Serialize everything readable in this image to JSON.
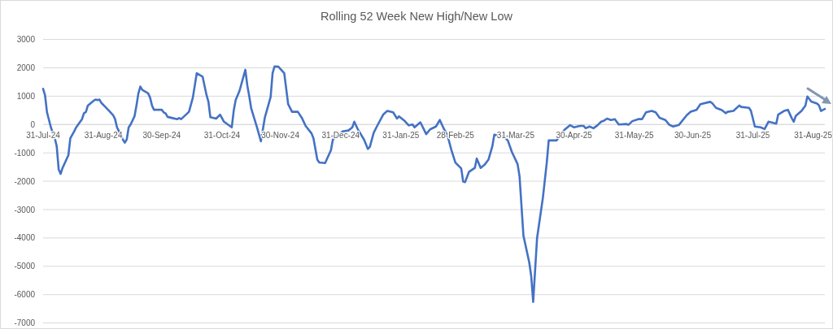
{
  "chart_data": {
    "type": "line",
    "title": "Rolling 52 Week New High/New Low",
    "x": [
      "2024-07-31",
      "2024-08-01",
      "2024-08-02",
      "2024-08-04",
      "2024-08-06",
      "2024-08-07",
      "2024-08-08",
      "2024-08-09",
      "2024-08-10",
      "2024-08-13",
      "2024-08-14",
      "2024-08-16",
      "2024-08-17",
      "2024-08-20",
      "2024-08-21",
      "2024-08-22",
      "2024-08-23",
      "2024-08-26",
      "2024-08-27",
      "2024-08-28",
      "2024-08-29",
      "2024-08-30",
      "2024-09-01",
      "2024-09-03",
      "2024-09-05",
      "2024-09-06",
      "2024-09-07",
      "2024-09-08",
      "2024-09-10",
      "2024-09-11",
      "2024-09-12",
      "2024-09-13",
      "2024-09-14",
      "2024-09-16",
      "2024-09-17",
      "2024-09-18",
      "2024-09-19",
      "2024-09-20",
      "2024-09-23",
      "2024-09-24",
      "2024-09-25",
      "2024-09-26",
      "2024-09-30",
      "2024-10-01",
      "2024-10-02",
      "2024-10-03",
      "2024-10-06",
      "2024-10-08",
      "2024-10-09",
      "2024-10-10",
      "2024-10-14",
      "2024-10-16",
      "2024-10-18",
      "2024-10-21",
      "2024-10-23",
      "2024-10-24",
      "2024-10-25",
      "2024-10-28",
      "2024-10-30",
      "2024-11-01",
      "2024-11-05",
      "2024-11-06",
      "2024-11-07",
      "2024-11-09",
      "2024-11-12",
      "2024-11-13",
      "2024-11-14",
      "2024-11-15",
      "2024-11-18",
      "2024-11-20",
      "2024-11-22",
      "2024-11-25",
      "2024-11-26",
      "2024-11-27",
      "2024-11-29",
      "2024-12-02",
      "2024-12-04",
      "2024-12-06",
      "2024-12-09",
      "2024-12-11",
      "2024-12-13",
      "2024-12-16",
      "2024-12-17",
      "2024-12-19",
      "2024-12-20",
      "2024-12-23",
      "2024-12-26",
      "2024-12-27",
      "2024-12-30",
      "2025-01-01",
      "2025-01-04",
      "2025-01-06",
      "2025-01-07",
      "2025-01-09",
      "2025-01-12",
      "2025-01-14",
      "2025-01-15",
      "2025-01-17",
      "2025-01-19",
      "2025-01-22",
      "2025-01-24",
      "2025-01-27",
      "2025-01-29",
      "2025-01-30",
      "2025-02-02",
      "2025-02-04",
      "2025-02-06",
      "2025-02-07",
      "2025-02-10",
      "2025-02-13",
      "2025-02-15",
      "2025-02-18",
      "2025-02-20",
      "2025-02-22",
      "2025-02-24",
      "2025-02-26",
      "2025-02-28",
      "2025-03-03",
      "2025-03-04",
      "2025-03-05",
      "2025-03-07",
      "2025-03-10",
      "2025-03-11",
      "2025-03-13",
      "2025-03-15",
      "2025-03-17",
      "2025-03-19",
      "2025-03-20",
      "2025-03-22",
      "2025-03-25",
      "2025-03-27",
      "2025-03-29",
      "2025-04-01",
      "2025-04-02",
      "2025-04-04",
      "2025-04-07",
      "2025-04-08",
      "2025-04-09",
      "2025-04-11",
      "2025-04-14",
      "2025-04-16",
      "2025-04-17",
      "2025-04-21",
      "2025-04-22",
      "2025-04-25",
      "2025-04-28",
      "2025-04-30",
      "2025-05-03",
      "2025-05-05",
      "2025-05-06",
      "2025-05-08",
      "2025-05-10",
      "2025-05-12",
      "2025-05-14",
      "2025-05-15",
      "2025-05-17",
      "2025-05-19",
      "2025-05-21",
      "2025-05-23",
      "2025-05-27",
      "2025-05-28",
      "2025-05-30",
      "2025-06-02",
      "2025-06-04",
      "2025-06-06",
      "2025-06-09",
      "2025-06-11",
      "2025-06-13",
      "2025-06-16",
      "2025-06-18",
      "2025-06-20",
      "2025-06-23",
      "2025-06-27",
      "2025-06-29",
      "2025-07-02",
      "2025-07-04",
      "2025-07-09",
      "2025-07-10",
      "2025-07-12",
      "2025-07-15",
      "2025-07-17",
      "2025-07-18",
      "2025-07-21",
      "2025-07-24",
      "2025-07-25",
      "2025-07-29",
      "2025-07-30",
      "2025-08-01",
      "2025-08-04",
      "2025-08-06",
      "2025-08-08",
      "2025-08-12",
      "2025-08-13",
      "2025-08-16",
      "2025-08-18",
      "2025-08-20",
      "2025-08-21",
      "2025-08-22",
      "2025-08-25",
      "2025-08-27",
      "2025-08-28",
      "2025-08-30",
      "2025-09-02",
      "2025-09-03",
      "2025-09-04",
      "2025-09-06"
    ],
    "series": [
      {
        "color": "#4472c4",
        "values": [
          1260,
          1030,
          430,
          -100,
          -480,
          -770,
          -1580,
          -1740,
          -1530,
          -1080,
          -480,
          -240,
          -100,
          190,
          400,
          440,
          670,
          840,
          880,
          860,
          880,
          760,
          620,
          480,
          330,
          190,
          -100,
          -240,
          -530,
          -640,
          -530,
          -100,
          0,
          290,
          670,
          1100,
          1340,
          1220,
          1100,
          950,
          670,
          520,
          520,
          430,
          390,
          270,
          220,
          190,
          230,
          190,
          450,
          950,
          1810,
          1690,
          1050,
          810,
          260,
          210,
          350,
          100,
          -100,
          480,
          860,
          1190,
          1930,
          1380,
          1000,
          570,
          -100,
          -590,
          240,
          970,
          1810,
          2050,
          2040,
          1810,
          720,
          450,
          450,
          240,
          -50,
          -310,
          -480,
          -1240,
          -1340,
          -1360,
          -910,
          -530,
          -380,
          -240,
          -210,
          -100,
          100,
          -190,
          -530,
          -860,
          -790,
          -290,
          -20,
          360,
          480,
          430,
          210,
          290,
          120,
          -30,
          0,
          -100,
          80,
          -340,
          -170,
          -70,
          160,
          -140,
          -400,
          -910,
          -1340,
          -1550,
          -2010,
          -2030,
          -1670,
          -1530,
          -1200,
          -1530,
          -1420,
          -1240,
          -770,
          -360,
          -400,
          -430,
          -570,
          -960,
          -1400,
          -1830,
          -3920,
          -4870,
          -5350,
          -6260,
          -4010,
          -2580,
          -1340,
          -560,
          -560,
          -480,
          -190,
          -20,
          -100,
          -50,
          -50,
          -130,
          -70,
          -130,
          -30,
          100,
          120,
          210,
          160,
          190,
          0,
          20,
          -10,
          120,
          190,
          190,
          430,
          480,
          430,
          240,
          160,
          -10,
          -70,
          -10,
          330,
          450,
          520,
          720,
          800,
          760,
          590,
          510,
          400,
          450,
          480,
          670,
          620,
          590,
          480,
          -70,
          -100,
          -160,
          100,
          30,
          350,
          480,
          520,
          220,
          100,
          300,
          480,
          670,
          990,
          810,
          740,
          670,
          480,
          550
        ]
      }
    ],
    "xlim": [
      "2024-07-31",
      "2025-09-06"
    ],
    "xticks": [
      {
        "value": "2024-07-31",
        "label": "31-Jul-24"
      },
      {
        "value": "2024-08-31",
        "label": "31-Aug-24"
      },
      {
        "value": "2024-09-30",
        "label": "30-Sep-24"
      },
      {
        "value": "2024-10-31",
        "label": "31-Oct-24"
      },
      {
        "value": "2024-11-30",
        "label": "30-Nov-24"
      },
      {
        "value": "2024-12-31",
        "label": "31-Dec-24"
      },
      {
        "value": "2025-01-31",
        "label": "31-Jan-25"
      },
      {
        "value": "2025-02-28",
        "label": "28-Feb-25"
      },
      {
        "value": "2025-03-31",
        "label": "31-Mar-25"
      },
      {
        "value": "2025-04-30",
        "label": "30-Apr-25"
      },
      {
        "value": "2025-05-31",
        "label": "31-May-25"
      },
      {
        "value": "2025-06-30",
        "label": "30-Jun-25"
      },
      {
        "value": "2025-07-31",
        "label": "31-Jul-25"
      },
      {
        "value": "2025-08-31",
        "label": "31-Aug-25"
      }
    ],
    "ylim": [
      -7000,
      3000
    ],
    "yticks": [
      -7000,
      -6000,
      -5000,
      -4000,
      -3000,
      -2000,
      -1000,
      0,
      1000,
      2000,
      3000
    ],
    "grid": "y"
  }
}
